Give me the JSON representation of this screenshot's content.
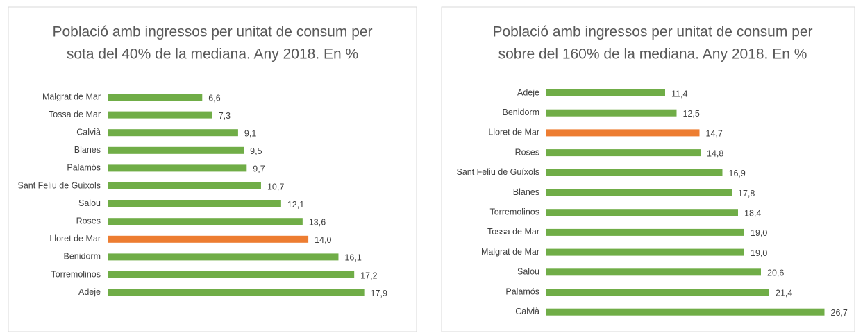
{
  "chart_data": [
    {
      "type": "barh",
      "title": [
        "Població amb ingressos per unitat de consum per",
        "sota del 40% de la mediana. Any 2018. En %"
      ],
      "categories": [
        "Malgrat de Mar",
        "Tossa de Mar",
        "Calvià",
        "Blanes",
        "Palamós",
        "Sant Feliu de Guíxols",
        "Salou",
        "Roses",
        "Lloret de Mar",
        "Benidorm",
        "Torremolinos",
        "Adeje"
      ],
      "values": [
        6.6,
        7.3,
        9.1,
        9.5,
        9.7,
        10.7,
        12.1,
        13.6,
        14.0,
        16.1,
        17.2,
        17.9
      ],
      "value_labels": [
        "6,6",
        "7,3",
        "9,1",
        "9,5",
        "9,7",
        "10,7",
        "12,1",
        "13,6",
        "14,0",
        "16,1",
        "17,2",
        "17,9"
      ],
      "colors": [
        "#70ad47",
        "#70ad47",
        "#70ad47",
        "#70ad47",
        "#70ad47",
        "#70ad47",
        "#70ad47",
        "#70ad47",
        "#ed7d31",
        "#70ad47",
        "#70ad47",
        "#70ad47"
      ],
      "xlim": [
        0,
        20
      ]
    },
    {
      "type": "barh",
      "title": [
        "Població amb ingressos per unitat de consum per",
        "sobre del 160% de la mediana. Any 2018. En %"
      ],
      "categories": [
        "Adeje",
        "Benidorm",
        "Lloret de Mar",
        "Roses",
        "Sant Feliu de Guíxols",
        "Blanes",
        "Torremolinos",
        "Tossa de Mar",
        "Malgrat de Mar",
        "Salou",
        "Palamós",
        "Calvià"
      ],
      "values": [
        11.4,
        12.5,
        14.7,
        14.8,
        16.9,
        17.8,
        18.4,
        19.0,
        19.0,
        20.6,
        21.4,
        26.7
      ],
      "value_labels": [
        "11,4",
        "12,5",
        "14,7",
        "14,8",
        "16,9",
        "17,8",
        "18,4",
        "19,0",
        "19,0",
        "20,6",
        "21,4",
        "26,7"
      ],
      "colors": [
        "#70ad47",
        "#70ad47",
        "#ed7d31",
        "#70ad47",
        "#70ad47",
        "#70ad47",
        "#70ad47",
        "#70ad47",
        "#70ad47",
        "#70ad47",
        "#70ad47",
        "#70ad47"
      ],
      "xlim": [
        0,
        30
      ]
    }
  ]
}
